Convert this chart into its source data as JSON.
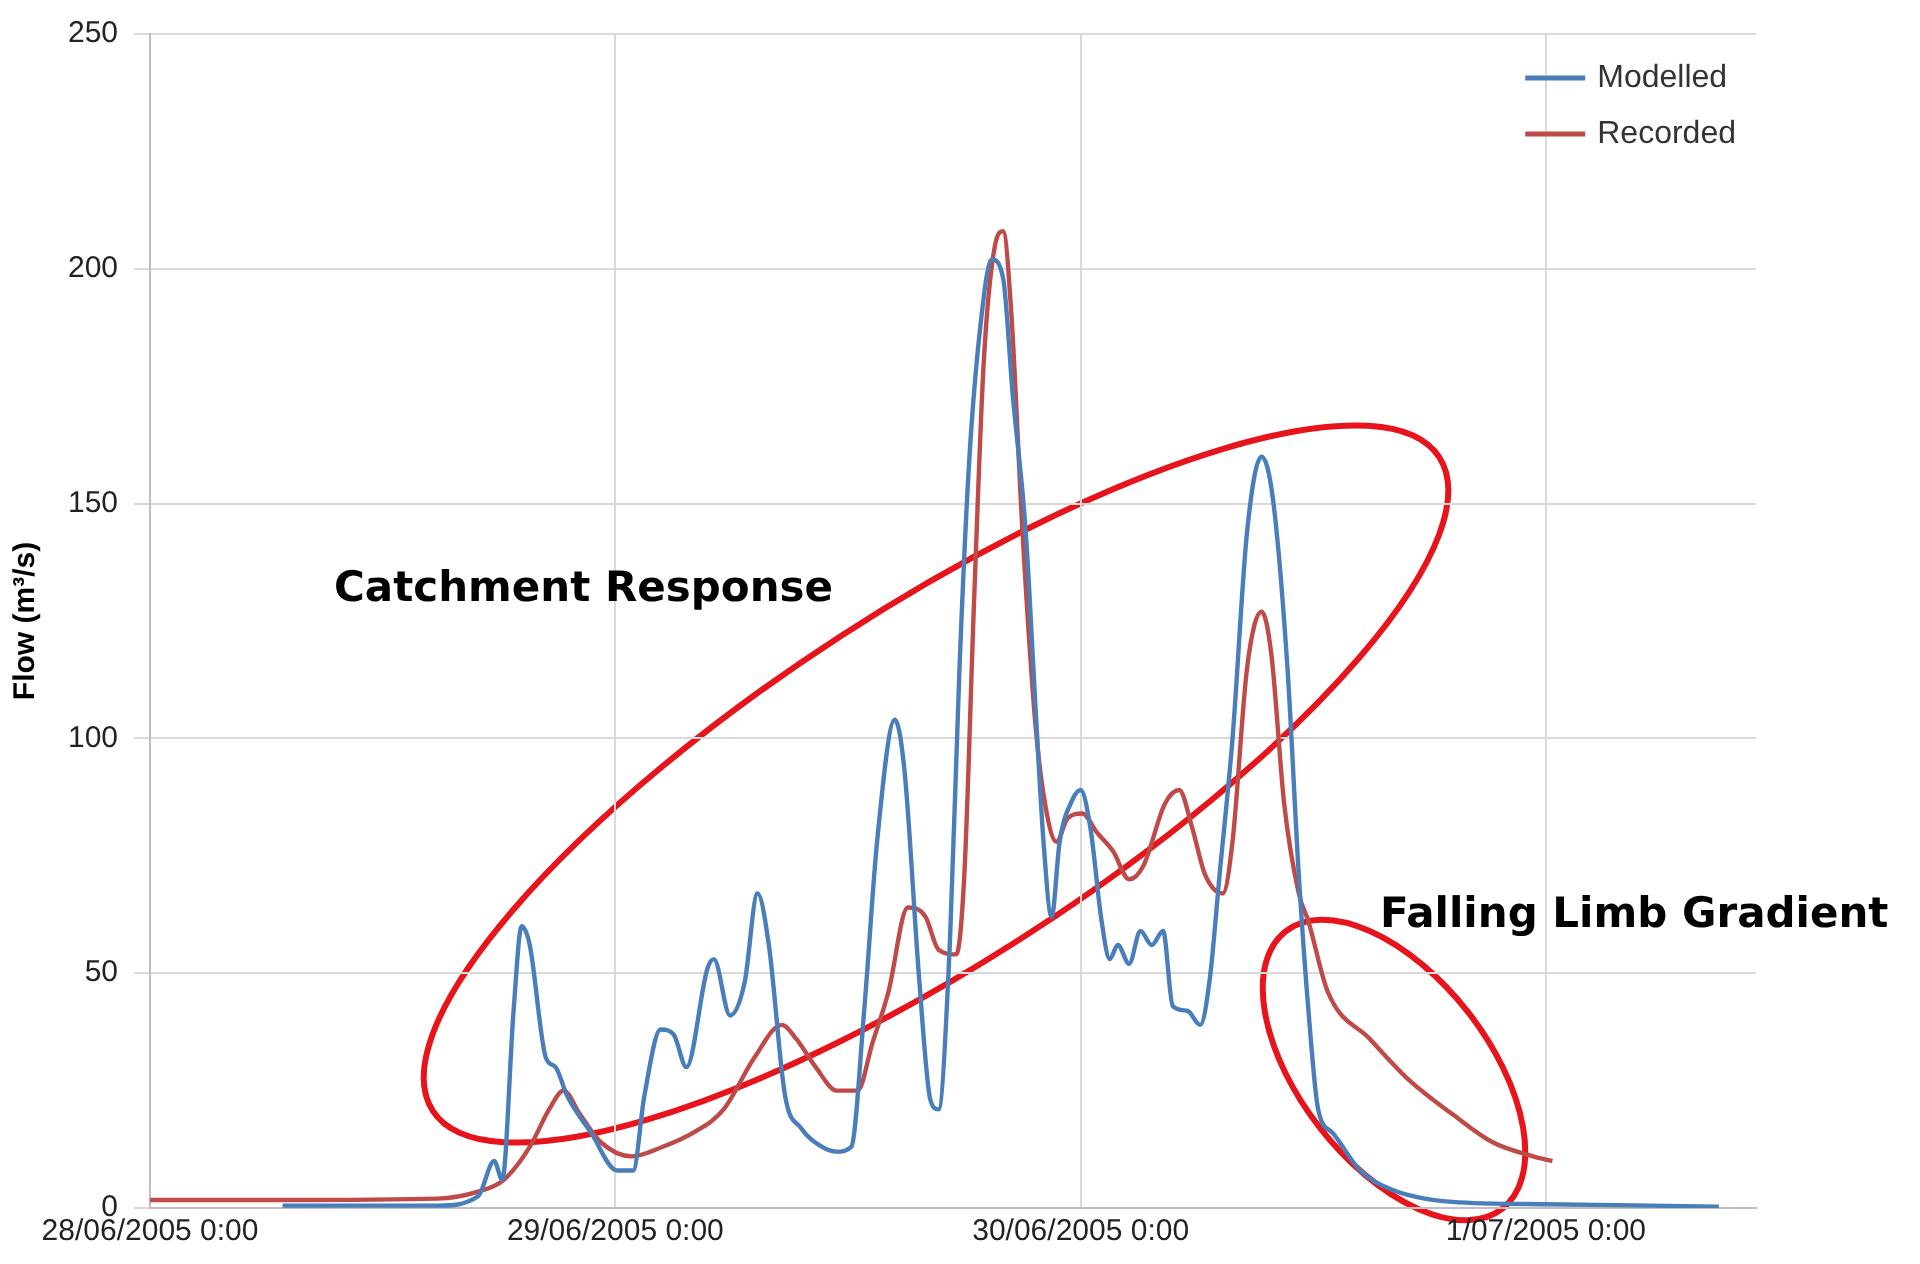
{
  "chart_data": {
    "type": "line",
    "ylabel": "Flow (m³/s)",
    "xlim": [
      "2005-06-28T00:00",
      "2005-07-01T10:50"
    ],
    "xticks": [
      {
        "value": "2005-06-28T00:00",
        "label": "28/06/2005 0:00"
      },
      {
        "value": "2005-06-29T00:00",
        "label": "29/06/2005 0:00"
      },
      {
        "value": "2005-06-30T00:00",
        "label": "30/06/2005 0:00"
      },
      {
        "value": "2005-07-01T00:00",
        "label": "1/07/2005 0:00"
      }
    ],
    "ylim": [
      0,
      250
    ],
    "yticks": [
      0,
      50,
      100,
      150,
      200,
      250
    ],
    "grid": true,
    "legend": "top right",
    "marker": "none",
    "line_style": "solid",
    "annotations": [
      "Catchment Response",
      "Falling Limb Gradient"
    ],
    "series": [
      {
        "name": "Modelled",
        "color": "#4a7ebb",
        "x": [
          "2005-06-28T06:50",
          "2005-06-28T14:50",
          "2005-06-28T16:55",
          "2005-06-28T17:45",
          "2005-06-28T18:10",
          "2005-06-28T18:45",
          "2005-06-28T19:10",
          "2005-06-28T19:35",
          "2005-06-28T20:25",
          "2005-06-28T20:55",
          "2005-06-28T21:30",
          "2005-06-28T22:45",
          "2005-06-29T00:05",
          "2005-06-29T00:55",
          "2005-06-29T01:30",
          "2005-06-29T02:20",
          "2005-06-29T03:00",
          "2005-06-29T03:40",
          "2005-06-29T04:45",
          "2005-06-29T05:05",
          "2005-06-29T05:55",
          "2005-06-29T06:40",
          "2005-06-29T07:20",
          "2005-06-29T07:55",
          "2005-06-29T08:45",
          "2005-06-29T09:35",
          "2005-06-29T10:40",
          "2005-06-29T11:25",
          "2005-06-29T12:10",
          "2005-06-29T12:50",
          "2005-06-29T13:30",
          "2005-06-29T14:25",
          "2005-06-29T14:55",
          "2005-06-29T15:40",
          "2005-06-29T16:15",
          "2005-06-29T16:40",
          "2005-06-29T17:15",
          "2005-06-29T17:45",
          "2005-06-29T18:15",
          "2005-06-29T18:50",
          "2005-06-29T19:25",
          "2005-06-29T20:00",
          "2005-06-29T20:30",
          "2005-06-29T21:10",
          "2005-06-29T21:40",
          "2005-06-29T22:05",
          "2005-06-29T22:30",
          "2005-06-29T22:55",
          "2005-06-29T23:35",
          "2005-06-30T00:00",
          "2005-06-30T00:30",
          "2005-06-30T01:05",
          "2005-06-30T01:30",
          "2005-06-30T01:55",
          "2005-06-30T02:30",
          "2005-06-30T03:05",
          "2005-06-30T03:40",
          "2005-06-30T04:15",
          "2005-06-30T04:45",
          "2005-06-30T05:30",
          "2005-06-30T06:10",
          "2005-06-30T06:40",
          "2005-06-30T07:10",
          "2005-06-30T07:50",
          "2005-06-30T08:35",
          "2005-06-30T09:20",
          "2005-06-30T09:55",
          "2005-06-30T10:40",
          "2005-06-30T11:15",
          "2005-06-30T11:45",
          "2005-06-30T12:15",
          "2005-06-30T13:00",
          "2005-06-30T14:25",
          "2005-06-30T16:00",
          "2005-06-30T19:10",
          "2005-07-01T00:00",
          "2005-07-01T08:55"
        ],
        "values": [
          0.5,
          0.5,
          2.5,
          10,
          6,
          42,
          60,
          56,
          32,
          30,
          24,
          16,
          8,
          8,
          24,
          38,
          37,
          30,
          51,
          53,
          41,
          48,
          67,
          56,
          24,
          17,
          13,
          12,
          13,
          42,
          78,
          104,
          93,
          49,
          23,
          21,
          56,
          115,
          159,
          188,
          202,
          198,
          173,
          144,
          107,
          78,
          62,
          78,
          87,
          89,
          81,
          61,
          53,
          56,
          52,
          59,
          56,
          59,
          43,
          42,
          39,
          49,
          71,
          100,
          144,
          160,
          151,
          115,
          71,
          42,
          21,
          16,
          8,
          4,
          1.3,
          0.8,
          0.3
        ]
      },
      {
        "name": "Recorded",
        "color": "#be4b48",
        "x": [
          "2005-06-28T00:00",
          "2005-06-28T06:50",
          "2005-06-28T14:50",
          "2005-06-28T16:55",
          "2005-06-28T18:15",
          "2005-06-28T19:35",
          "2005-06-28T20:35",
          "2005-06-28T21:20",
          "2005-06-28T22:10",
          "2005-06-28T23:15",
          "2005-06-29T00:50",
          "2005-06-29T02:25",
          "2005-06-29T04:00",
          "2005-06-29T05:35",
          "2005-06-29T07:10",
          "2005-06-29T08:35",
          "2005-06-29T09:20",
          "2005-06-29T10:20",
          "2005-06-29T11:25",
          "2005-06-29T12:30",
          "2005-06-29T13:15",
          "2005-06-29T14:05",
          "2005-06-29T15:05",
          "2005-06-29T16:00",
          "2005-06-29T16:40",
          "2005-06-29T17:35",
          "2005-06-29T18:00",
          "2005-06-29T18:30",
          "2005-06-29T19:00",
          "2005-06-29T19:35",
          "2005-06-29T20:00",
          "2005-06-29T20:25",
          "2005-06-29T21:00",
          "2005-06-29T21:40",
          "2005-06-29T22:10",
          "2005-06-29T22:45",
          "2005-06-29T23:20",
          "2005-06-30T00:05",
          "2005-06-30T00:50",
          "2005-06-30T01:40",
          "2005-06-30T02:30",
          "2005-06-30T03:15",
          "2005-06-30T04:20",
          "2005-06-30T05:05",
          "2005-06-30T05:45",
          "2005-06-30T06:25",
          "2005-06-30T07:20",
          "2005-06-30T07:50",
          "2005-06-30T08:35",
          "2005-06-30T09:20",
          "2005-06-30T09:50",
          "2005-06-30T10:30",
          "2005-06-30T11:15",
          "2005-06-30T11:45",
          "2005-06-30T12:45",
          "2005-06-30T14:55",
          "2005-06-30T17:00",
          "2005-06-30T19:10",
          "2005-06-30T21:15",
          "2005-06-30T23:20",
          "2005-07-01T00:20"
        ],
        "values": [
          1.7,
          1.7,
          2,
          3.5,
          6,
          13,
          21,
          25,
          20,
          14,
          11,
          13,
          16,
          21,
          32,
          39,
          36,
          30,
          25,
          25,
          35,
          46,
          64,
          62,
          55,
          54,
          71,
          129,
          180,
          205,
          208,
          191,
          144,
          103,
          86,
          78,
          83,
          84,
          80,
          76,
          70,
          73,
          86,
          89,
          81,
          71,
          67,
          78,
          115,
          127,
          118,
          86,
          67,
          61,
          46,
          36,
          27,
          20,
          14,
          11,
          10
        ]
      }
    ]
  }
}
